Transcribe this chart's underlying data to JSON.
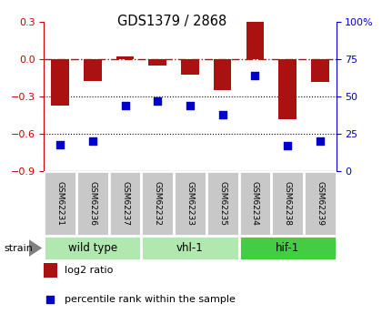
{
  "title": "GDS1379 / 2868",
  "samples": [
    "GSM62231",
    "GSM62236",
    "GSM62237",
    "GSM62232",
    "GSM62233",
    "GSM62235",
    "GSM62234",
    "GSM62238",
    "GSM62239"
  ],
  "log2_ratio": [
    -0.37,
    -0.175,
    0.02,
    -0.05,
    -0.12,
    -0.25,
    0.3,
    -0.48,
    -0.185
  ],
  "percentile_rank": [
    18,
    20,
    44,
    47,
    44,
    38,
    64,
    17,
    20
  ],
  "ylim_left": [
    -0.9,
    0.3
  ],
  "ylim_right": [
    0,
    100
  ],
  "yticks_left": [
    -0.9,
    -0.6,
    -0.3,
    0.0,
    0.3
  ],
  "yticks_right": [
    0,
    25,
    50,
    75,
    100
  ],
  "groups": [
    {
      "label": "wild type",
      "start": 0,
      "end": 3,
      "color": "#b0e8b0"
    },
    {
      "label": "vhl-1",
      "start": 3,
      "end": 6,
      "color": "#b0e8b0"
    },
    {
      "label": "hif-1",
      "start": 6,
      "end": 9,
      "color": "#44cc44"
    }
  ],
  "bar_color": "#aa1111",
  "dot_color": "#0000cc",
  "zero_line_color": "#cc0000",
  "grid_color": "#000000",
  "label_color_left": "#cc0000",
  "label_color_right": "#0000cc",
  "sample_box_color": "#c8c8c8",
  "sample_box_edge": "#ffffff",
  "bar_width": 0.55,
  "dot_size": 28
}
